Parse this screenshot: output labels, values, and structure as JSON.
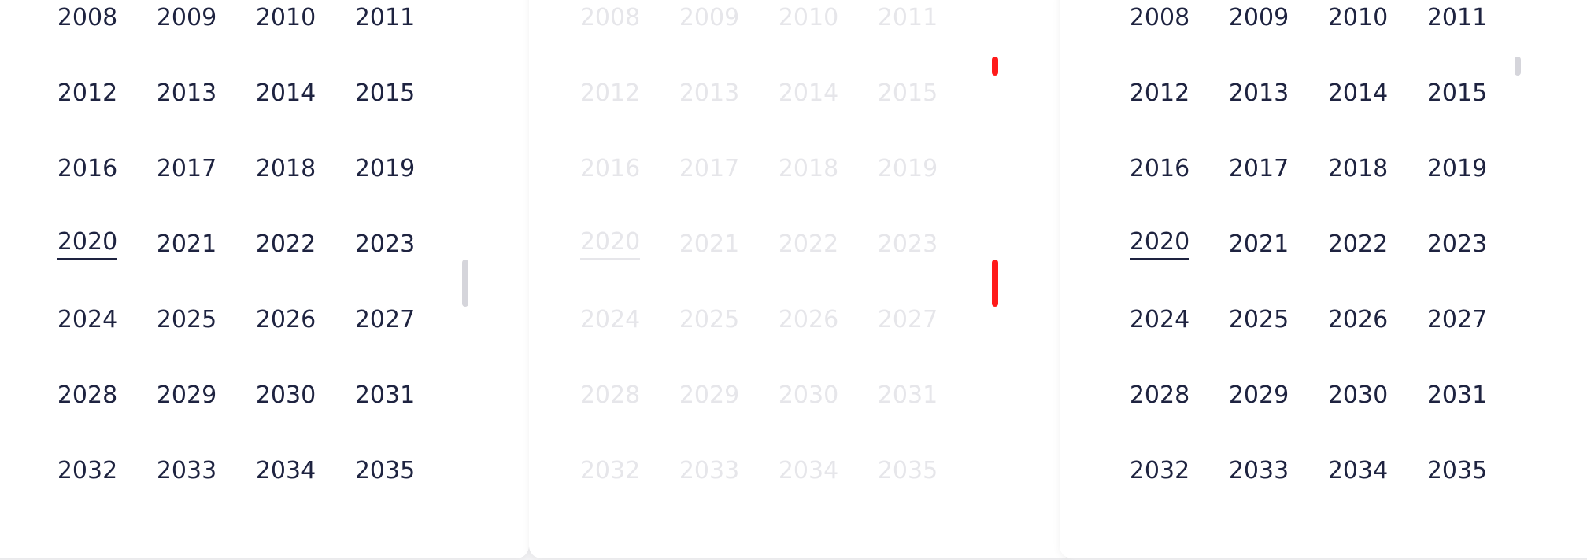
{
  "panels": [
    {
      "years": [
        "2008",
        "2009",
        "2010",
        "2011",
        "2012",
        "2013",
        "2014",
        "2015",
        "2016",
        "2017",
        "2018",
        "2019",
        "2020",
        "2021",
        "2022",
        "2023",
        "2024",
        "2025",
        "2026",
        "2027",
        "2028",
        "2029",
        "2030",
        "2031",
        "2032",
        "2033",
        "2034",
        "2035"
      ],
      "current_year": "2020",
      "state": "normal"
    },
    {
      "years": [
        "2008",
        "2009",
        "2010",
        "2011",
        "2012",
        "2013",
        "2014",
        "2015",
        "2016",
        "2017",
        "2018",
        "2019",
        "2020",
        "2021",
        "2022",
        "2023",
        "2024",
        "2025",
        "2026",
        "2027",
        "2028",
        "2029",
        "2030",
        "2031",
        "2032",
        "2033",
        "2034",
        "2035"
      ],
      "current_year": "2020",
      "state": "faded"
    },
    {
      "years": [
        "2008",
        "2009",
        "2010",
        "2011",
        "2012",
        "2013",
        "2014",
        "2015",
        "2016",
        "2017",
        "2018",
        "2019",
        "2020",
        "2021",
        "2022",
        "2023",
        "2024",
        "2025",
        "2026",
        "2027",
        "2028",
        "2029",
        "2030",
        "2031",
        "2032",
        "2033",
        "2034",
        "2035"
      ],
      "current_year": "2020",
      "state": "normal"
    }
  ],
  "colors": {
    "text": "#1e2340",
    "faded_text": "#e6e6ea",
    "scrollbar": "#d5d5db",
    "marker": "#ff1a1a"
  }
}
